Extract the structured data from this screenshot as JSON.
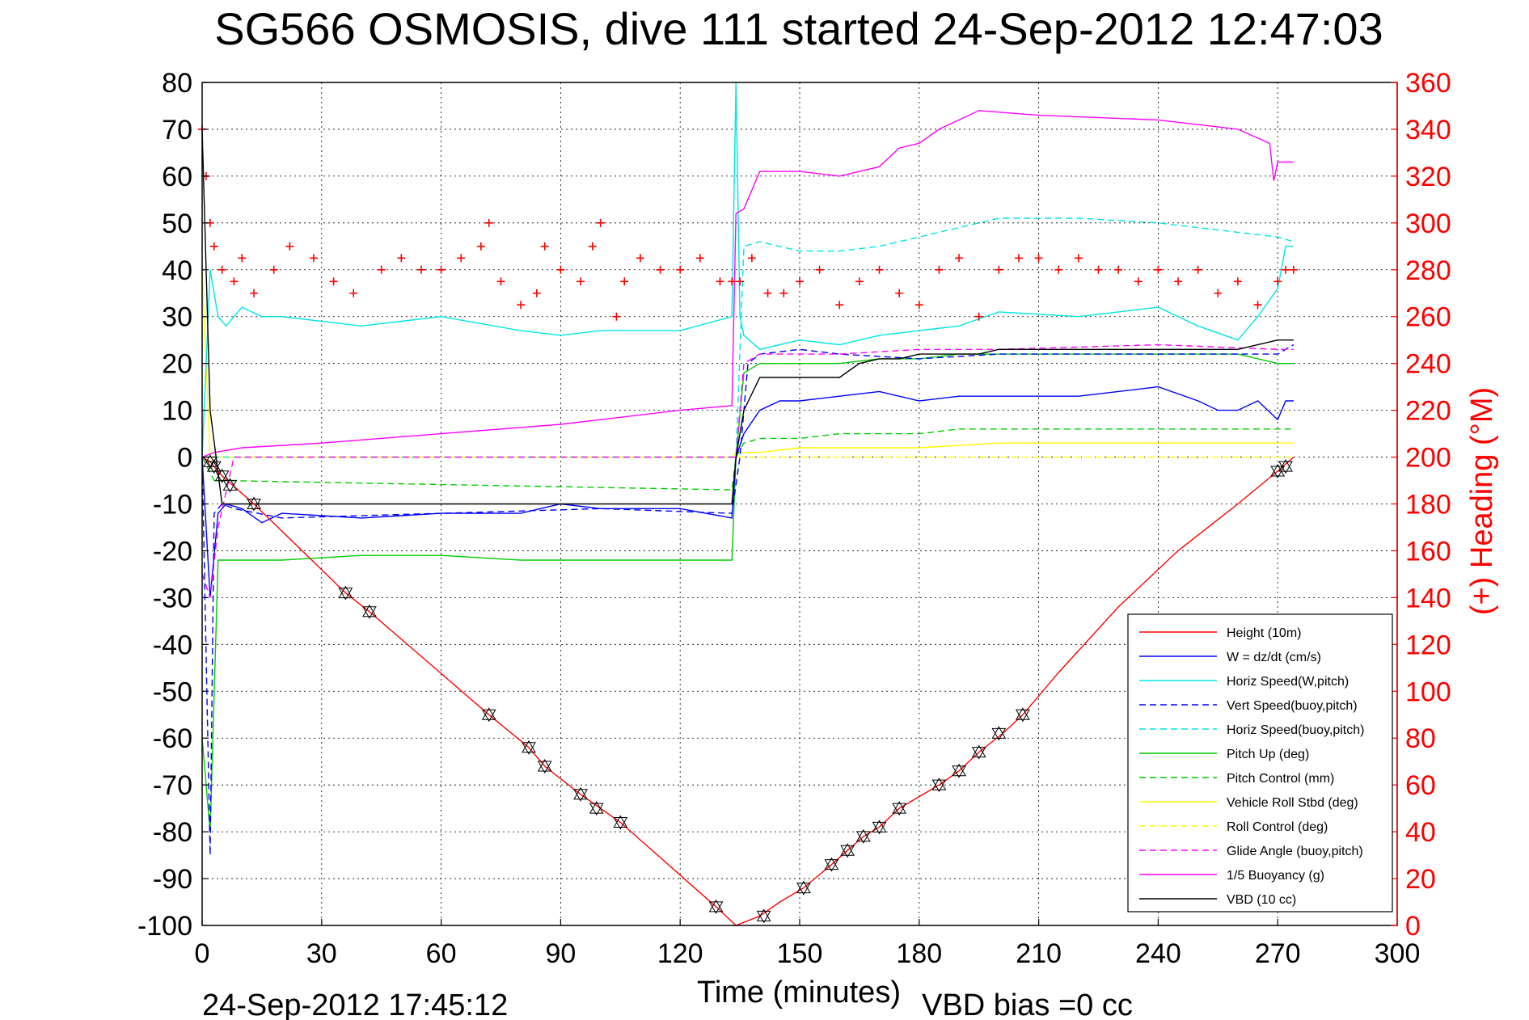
{
  "chart_data": {
    "type": "line",
    "title": "SG566 OSMOSIS, dive 111 started 24-Sep-2012 12:47:03",
    "xlabel": "Time (minutes)",
    "ylabel_right": "(+) Heading (°M)",
    "footer_left": "24-Sep-2012 17:45:12",
    "footer_right": "VBD bias =0 cc",
    "xlim": [
      0,
      300
    ],
    "ylim": [
      -100,
      80
    ],
    "ylim_right": [
      0,
      360
    ],
    "x_ticks": [
      "0",
      "30",
      "60",
      "90",
      "120",
      "150",
      "180",
      "210",
      "240",
      "270",
      "300"
    ],
    "y_ticks": [
      "80",
      "70",
      "60",
      "50",
      "40",
      "30",
      "20",
      "10",
      "0",
      "-10",
      "-20",
      "-30",
      "-40",
      "-50",
      "-60",
      "-70",
      "-80",
      "-90",
      "-100"
    ],
    "y_right_ticks": [
      "360",
      "340",
      "320",
      "300",
      "280",
      "260",
      "240",
      "220",
      "200",
      "180",
      "160",
      "140",
      "120",
      "100",
      "80",
      "60",
      "40",
      "20",
      "0"
    ],
    "grid": true,
    "legend_position": "bottom-right",
    "colors": {
      "height": "#ff0000",
      "w": "#0000ff",
      "horiz_speed": "#00e5e5",
      "vert_speed_buoy": "#0000ff",
      "horiz_speed_buoy": "#00e5e5",
      "pitch_up": "#00cc00",
      "pitch_control": "#00cc00",
      "vehicle_roll": "#ffff00",
      "roll_control": "#ffff00",
      "glide_angle": "#ff00ff",
      "buoyancy": "#ff00ff",
      "vbd": "#000000",
      "heading": "#ff0000"
    },
    "series": [
      {
        "name": "Height (10m)",
        "key": "height",
        "dash": false,
        "x": [
          0,
          2,
          5,
          13,
          36,
          42,
          72,
          82,
          86,
          95,
          100,
          105,
          129,
          134,
          140,
          145,
          151,
          158,
          162,
          166,
          170,
          175,
          185,
          190,
          195,
          201,
          206,
          215,
          230,
          245,
          260,
          270,
          274
        ],
        "y": [
          0,
          -1,
          -4,
          -10,
          -29,
          -33,
          -55,
          -62,
          -66,
          -72,
          -75,
          -78,
          -96,
          -100,
          -98,
          -95,
          -92,
          -87,
          -84,
          -81,
          -79,
          -75,
          -70,
          -67,
          -63,
          -59,
          -55,
          -46,
          -32,
          -20,
          -10,
          -3,
          0
        ]
      },
      {
        "name": "W = dz/dt (cm/s)",
        "key": "w",
        "dash": false,
        "x": [
          0,
          2,
          4,
          6,
          10,
          15,
          20,
          40,
          60,
          80,
          90,
          100,
          120,
          133,
          134,
          136,
          140,
          145,
          150,
          160,
          170,
          180,
          190,
          200,
          220,
          240,
          250,
          255,
          260,
          265,
          270,
          272,
          274
        ],
        "y": [
          0,
          -30,
          -12,
          -10,
          -11,
          -14,
          -12,
          -13,
          -12,
          -12,
          -10,
          -11,
          -11,
          -13,
          0,
          5,
          10,
          12,
          12,
          13,
          14,
          12,
          13,
          13,
          13,
          15,
          12,
          10,
          10,
          12,
          8,
          12,
          12
        ]
      },
      {
        "name": "Horiz Speed(W,pitch)",
        "key": "horiz_speed",
        "dash": false,
        "x": [
          0,
          2,
          4,
          6,
          10,
          15,
          20,
          40,
          60,
          80,
          90,
          100,
          120,
          133,
          134,
          135,
          136,
          140,
          150,
          160,
          170,
          180,
          190,
          200,
          220,
          240,
          250,
          260,
          265,
          270,
          272,
          274
        ],
        "y": [
          0,
          40,
          30,
          28,
          32,
          30,
          30,
          28,
          30,
          27,
          26,
          27,
          27,
          30,
          80,
          30,
          26,
          23,
          25,
          24,
          26,
          27,
          28,
          31,
          30,
          32,
          28,
          25,
          30,
          36,
          45,
          45
        ]
      },
      {
        "name": "Vert Speed(buoy,pitch)",
        "key": "vert_speed_buoy",
        "dash": true,
        "x": [
          0,
          2,
          3,
          5,
          8,
          20,
          60,
          100,
          133,
          135,
          137,
          140,
          150,
          160,
          180,
          200,
          240,
          270,
          274
        ],
        "y": [
          0,
          -85,
          -12,
          -10,
          -11,
          -13,
          -12,
          -11,
          -12,
          0,
          20,
          22,
          23,
          22,
          21,
          22,
          22,
          22,
          24
        ]
      },
      {
        "name": "Horiz Speed(buoy,pitch)",
        "key": "horiz_speed_buoy",
        "dash": true,
        "x": [
          0,
          134,
          136,
          140,
          150,
          160,
          170,
          180,
          190,
          195,
          200,
          220,
          240,
          260,
          270,
          274
        ],
        "y": [
          0,
          0,
          45,
          46,
          44,
          44,
          45,
          47,
          49,
          50,
          51,
          51,
          50,
          48,
          47,
          46
        ]
      },
      {
        "name": "Pitch Up (deg)",
        "key": "pitch_up",
        "dash": false,
        "x": [
          0,
          2,
          4,
          8,
          12,
          20,
          40,
          60,
          80,
          100,
          120,
          133,
          134,
          136,
          140,
          150,
          160,
          170,
          180,
          190,
          200,
          220,
          240,
          260,
          270,
          274
        ],
        "y": [
          -60,
          -80,
          -22,
          -22,
          -22,
          -22,
          -21,
          -21,
          -22,
          -22,
          -22,
          -22,
          0,
          18,
          20,
          20,
          20,
          21,
          21,
          22,
          22,
          22,
          22,
          22,
          20,
          20
        ]
      },
      {
        "name": "Pitch Control (mm)",
        "key": "pitch_control",
        "dash": true,
        "x": [
          0,
          3,
          5,
          133,
          134,
          136,
          140,
          150,
          160,
          170,
          180,
          190,
          200,
          240,
          270,
          274
        ],
        "y": [
          0,
          -5,
          -5,
          -7,
          0,
          3,
          4,
          4,
          5,
          5,
          5,
          6,
          6,
          6,
          6,
          6
        ]
      },
      {
        "name": "Vehicle Roll Stbd (deg)",
        "key": "vehicle_roll",
        "dash": false,
        "x": [
          0,
          1,
          2,
          4,
          8,
          30,
          60,
          100,
          133,
          134,
          140,
          150,
          160,
          180,
          200,
          240,
          270,
          274
        ],
        "y": [
          40,
          20,
          0,
          0,
          0,
          0,
          0,
          0,
          0,
          1,
          1,
          2,
          2,
          2,
          3,
          3,
          3,
          3
        ]
      },
      {
        "name": "Roll Control (deg)",
        "key": "roll_control",
        "dash": true,
        "x": [
          0,
          134,
          140,
          160,
          200,
          240,
          274
        ],
        "y": [
          0,
          0,
          0,
          0,
          0,
          0,
          0
        ]
      },
      {
        "name": "Glide Angle (buoy,pitch)",
        "key": "glide_angle",
        "dash": true,
        "x": [
          0,
          2,
          4,
          8,
          133,
          134,
          136,
          140,
          160,
          180,
          200,
          240,
          270,
          274
        ],
        "y": [
          -25,
          -30,
          -15,
          0,
          0,
          0,
          20,
          22,
          22,
          23,
          23,
          24,
          23,
          23
        ]
      },
      {
        "name": "1/5 Buoyancy (g)",
        "key": "buoyancy",
        "dash": false,
        "x": [
          0,
          3,
          10,
          30,
          60,
          90,
          120,
          133,
          134,
          136,
          140,
          150,
          160,
          170,
          175,
          180,
          185,
          190,
          195,
          210,
          240,
          260,
          268,
          269,
          270,
          274
        ],
        "y": [
          0,
          1,
          2,
          3,
          5,
          7,
          10,
          11,
          52,
          53,
          61,
          61,
          60,
          62,
          66,
          67,
          70,
          72,
          74,
          73,
          72,
          70,
          67,
          59,
          63,
          63
        ]
      },
      {
        "name": "VBD (10 cc)",
        "key": "vbd",
        "dash": false,
        "x": [
          0,
          2,
          5,
          13,
          30,
          60,
          100,
          133,
          134,
          136,
          140,
          150,
          160,
          165,
          170,
          175,
          180,
          185,
          190,
          195,
          200,
          220,
          240,
          260,
          270,
          274
        ],
        "y": [
          70,
          10,
          -10,
          -10,
          -10,
          -10,
          -10,
          -10,
          0,
          10,
          17,
          17,
          17,
          20,
          21,
          21,
          22,
          22,
          22,
          22,
          23,
          23,
          23,
          23,
          25,
          25
        ]
      },
      {
        "name": "(+) Heading (°M)",
        "key": "heading",
        "dash": false,
        "marker": "plus",
        "axis": "right",
        "in_legend": false,
        "x": [
          0,
          1,
          2,
          3,
          5,
          8,
          10,
          13,
          18,
          22,
          28,
          33,
          38,
          45,
          50,
          55,
          60,
          65,
          70,
          72,
          75,
          80,
          84,
          86,
          90,
          95,
          98,
          100,
          104,
          106,
          110,
          115,
          120,
          125,
          130,
          133,
          135,
          138,
          142,
          146,
          150,
          155,
          160,
          165,
          170,
          175,
          180,
          185,
          190,
          195,
          200,
          205,
          210,
          215,
          220,
          225,
          230,
          235,
          240,
          245,
          250,
          255,
          260,
          265,
          270,
          272,
          274
        ],
        "y": [
          340,
          320,
          300,
          290,
          280,
          275,
          285,
          270,
          280,
          290,
          285,
          275,
          270,
          280,
          285,
          280,
          280,
          285,
          290,
          300,
          275,
          265,
          270,
          290,
          280,
          275,
          290,
          300,
          260,
          275,
          285,
          280,
          280,
          285,
          275,
          275,
          275,
          285,
          270,
          270,
          275,
          280,
          265,
          275,
          280,
          270,
          265,
          280,
          285,
          260,
          280,
          285,
          285,
          280,
          285,
          280,
          280,
          275,
          280,
          275,
          280,
          270,
          275,
          265,
          275,
          280,
          280
        ]
      }
    ],
    "turn_markers": {
      "x": [
        2,
        3,
        5,
        7,
        13,
        36,
        42,
        72,
        82,
        86,
        95,
        99,
        105,
        129,
        141,
        151,
        158,
        162,
        166,
        170,
        175,
        185,
        190,
        195,
        200,
        206,
        270,
        272
      ],
      "y": [
        -1,
        -2,
        -4,
        -6,
        -10,
        -29,
        -33,
        -55,
        -62,
        -66,
        -72,
        -75,
        -78,
        -96,
        -98,
        -92,
        -87,
        -84,
        -81,
        -79,
        -75,
        -70,
        -67,
        -63,
        -59,
        -55,
        -3,
        -2
      ]
    }
  }
}
